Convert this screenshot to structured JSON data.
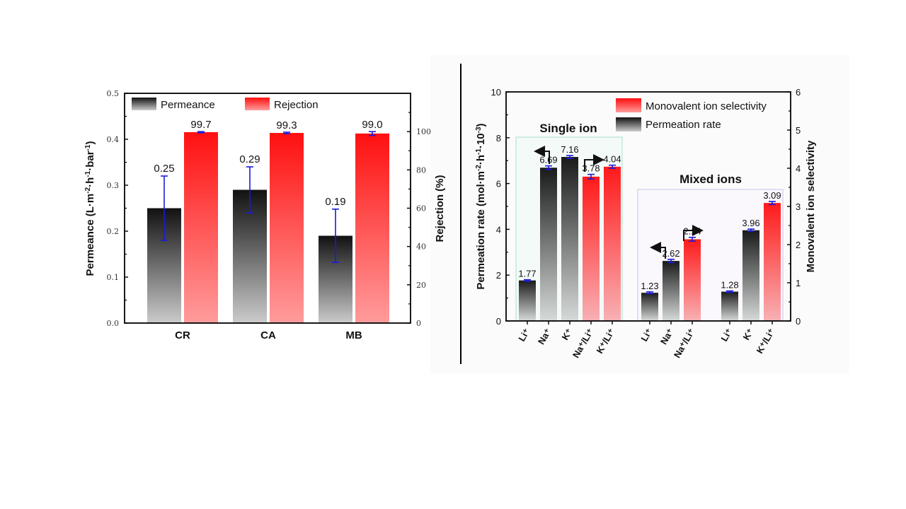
{
  "chart_data": [
    {
      "type": "bar",
      "id": "left",
      "title": "",
      "categories": [
        "CR",
        "CA",
        "MB"
      ],
      "series": [
        {
          "name": "Permeance",
          "axis": "left",
          "values": [
            0.25,
            0.29,
            0.19
          ],
          "errors": [
            0.07,
            0.05,
            0.058
          ],
          "labels": [
            "0.25",
            "0.29",
            "0.19"
          ],
          "gradient": [
            "#111111",
            "#c8c8c8"
          ]
        },
        {
          "name": "Rejection",
          "axis": "right",
          "values": [
            99.7,
            99.3,
            99.0
          ],
          "errors": [
            0.3,
            0.4,
            1.0
          ],
          "labels": [
            "99.7",
            "99.3",
            "99.0"
          ],
          "gradient": [
            "#ff1010",
            "#ff9a9a"
          ]
        }
      ],
      "ylabel": "Permeance (L·m⁻²·h⁻¹·bar⁻¹)",
      "ylabel_parts": {
        "pre": "Permeance (L·m",
        "sup1": "-2",
        "mid1": "·h",
        "sup2": "-1",
        "mid2": "·bar",
        "sup3": "-1",
        "post": ")"
      },
      "ylim": [
        0,
        0.5
      ],
      "yticks": [
        "0.0",
        "0.1",
        "0.2",
        "0.3",
        "0.4",
        "0.5"
      ],
      "y2label": "Rejection (%)",
      "y2lim": [
        0,
        120
      ],
      "y2ticks": [
        "0",
        "20",
        "40",
        "60",
        "80",
        "100"
      ],
      "legend": [
        "Permeance",
        "Rejection"
      ],
      "legend_position": "top-left",
      "grid": false,
      "error_color": "#1a1adc"
    },
    {
      "type": "bar",
      "id": "right",
      "title": "",
      "groups": [
        {
          "title": "Single ion",
          "categories": [
            "Li⁺",
            "Na⁺",
            "K⁺",
            "Na⁺/Li⁺",
            "K⁺/Li⁺"
          ]
        },
        {
          "title": "Mixed ions",
          "categories": [
            "Li⁺",
            "Na⁺",
            "Na⁺/Li⁺",
            "Li⁺",
            "K⁺",
            "K⁺/Li⁺"
          ]
        }
      ],
      "bars": [
        {
          "group": 0,
          "category": "Li⁺",
          "series": "Permeation rate",
          "axis": "left",
          "value": 1.77,
          "error": 0.03,
          "label": "1.77"
        },
        {
          "group": 0,
          "category": "Na⁺",
          "series": "Permeation rate",
          "axis": "left",
          "value": 6.69,
          "error": 0.08,
          "label": "6.69"
        },
        {
          "group": 0,
          "category": "K⁺",
          "series": "Permeation rate",
          "axis": "left",
          "value": 7.16,
          "error": 0.06,
          "label": "7.16"
        },
        {
          "group": 0,
          "category": "Na⁺/Li⁺",
          "series": "Monovalent ion selectivity",
          "axis": "right",
          "value": 3.78,
          "error": 0.06,
          "label": "3.78"
        },
        {
          "group": 0,
          "category": "K⁺/Li⁺",
          "series": "Monovalent ion selectivity",
          "axis": "right",
          "value": 4.04,
          "error": 0.04,
          "label": "4.04"
        },
        {
          "group": 1,
          "category": "Li⁺",
          "series": "Permeation rate",
          "axis": "left",
          "value": 1.23,
          "error": 0.04,
          "label": "1.23"
        },
        {
          "group": 1,
          "category": "Na⁺",
          "series": "Permeation rate",
          "axis": "left",
          "value": 2.62,
          "error": 0.07,
          "label": "2.62"
        },
        {
          "group": 1,
          "category": "Na⁺/Li⁺",
          "series": "Monovalent ion selectivity",
          "axis": "right",
          "value": 2.14,
          "error": 0.05,
          "label": "2.14"
        },
        {
          "group": 1,
          "category": "Li⁺",
          "series": "Permeation rate",
          "axis": "left",
          "value": 1.28,
          "error": 0.03,
          "label": "1.28"
        },
        {
          "group": 1,
          "category": "K⁺",
          "series": "Permeation rate",
          "axis": "left",
          "value": 3.96,
          "error": 0.05,
          "label": "3.96"
        },
        {
          "group": 1,
          "category": "K⁺/Li⁺",
          "series": "Monovalent ion selectivity",
          "axis": "right",
          "value": 3.09,
          "error": 0.04,
          "label": "3.09"
        }
      ],
      "ylabel": "Permeation rate (mol·m⁻²·h⁻¹·10⁻³)",
      "ylabel_parts": {
        "pre": "Permeation rate (mol·m",
        "sup1": "-2",
        "mid1": "·h",
        "sup2": "-1",
        "mid2": "·10",
        "sup3": "-3",
        "post": ")"
      },
      "ylim": [
        0,
        10
      ],
      "yticks": [
        "0",
        "2",
        "4",
        "6",
        "8",
        "10"
      ],
      "y2label": "Monovalent ion selectivity",
      "y2lim": [
        0,
        6
      ],
      "y2ticks": [
        "0",
        "1",
        "2",
        "3",
        "4",
        "5",
        "6"
      ],
      "legend": [
        "Monovalent ion selectivity",
        "Permeation rate"
      ],
      "legend_position": "top-right",
      "grid": false,
      "error_color": "#1a1adc",
      "annotations": [
        "arrow-left (Na⁺ single → left axis)",
        "arrow-right (Na⁺/Li⁺ single → right axis)",
        "arrow-left (Na⁺ mixed → left axis)",
        "arrow-right (Na⁺/Li⁺ mixed → right axis)"
      ]
    }
  ]
}
